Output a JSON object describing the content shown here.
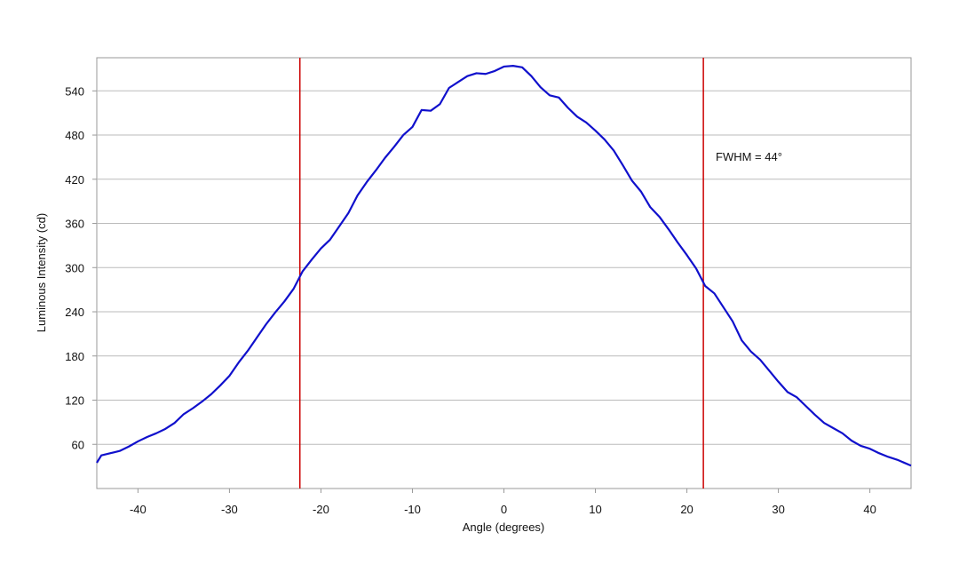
{
  "chart_data": {
    "type": "line",
    "x_label": "Angle (degrees)",
    "y_label": "Luminous Intensity (cd)",
    "annotation": "FWHM = 44°",
    "x": [
      -44.5,
      -44,
      -43,
      -42,
      -41,
      -40,
      -39,
      -38,
      -37,
      -36,
      -35,
      -34,
      -33,
      -32,
      -31,
      -30,
      -29,
      -28,
      -27,
      -26,
      -25,
      -24,
      -23,
      -22,
      -21,
      -20,
      -19,
      -18,
      -17,
      -16,
      -15,
      -14,
      -13,
      -12,
      -11,
      -10,
      -9,
      -8,
      -7,
      -6,
      -5,
      -4,
      -3,
      -2,
      -1,
      0,
      1,
      2,
      3,
      4,
      5,
      6,
      7,
      8,
      9,
      10,
      11,
      12,
      13,
      14,
      15,
      16,
      17,
      18,
      19,
      20,
      21,
      22,
      23,
      24,
      25,
      26,
      27,
      28,
      29,
      30,
      31,
      32,
      33,
      34,
      35,
      36,
      37,
      38,
      39,
      40,
      41,
      42,
      43,
      44.5
    ],
    "series": [
      {
        "color": "#1010cc",
        "values": [
          35,
          45,
          48,
          51,
          57,
          64,
          70,
          75,
          81,
          89,
          101,
          109,
          118,
          128,
          140,
          153,
          171,
          187,
          205,
          223,
          239,
          254,
          271,
          295,
          311,
          326,
          338,
          356,
          374,
          398,
          416,
          432,
          449,
          464,
          480,
          491,
          514,
          513,
          522,
          544,
          552,
          560,
          564,
          563,
          567,
          573,
          574,
          572,
          560,
          545,
          534,
          531,
          517,
          505,
          497,
          486,
          474,
          459,
          439,
          418,
          403,
          382,
          369,
          352,
          334,
          317,
          299,
          275,
          265,
          246,
          227,
          201,
          186,
          175,
          160,
          145,
          131,
          124,
          112,
          100,
          89,
          82,
          75,
          65,
          58,
          54,
          48,
          43,
          39,
          31
        ]
      }
    ],
    "vlines": [
      -22.3,
      21.8
    ],
    "vline_color": "#cc0000",
    "xlim": [
      -44.5,
      44.5
    ],
    "ylim": [
      0,
      585
    ],
    "xticks": [
      -40,
      -30,
      -20,
      -10,
      0,
      10,
      20,
      30,
      40
    ],
    "yticks": [
      60,
      120,
      180,
      240,
      300,
      360,
      420,
      480,
      540
    ],
    "grid": true
  }
}
